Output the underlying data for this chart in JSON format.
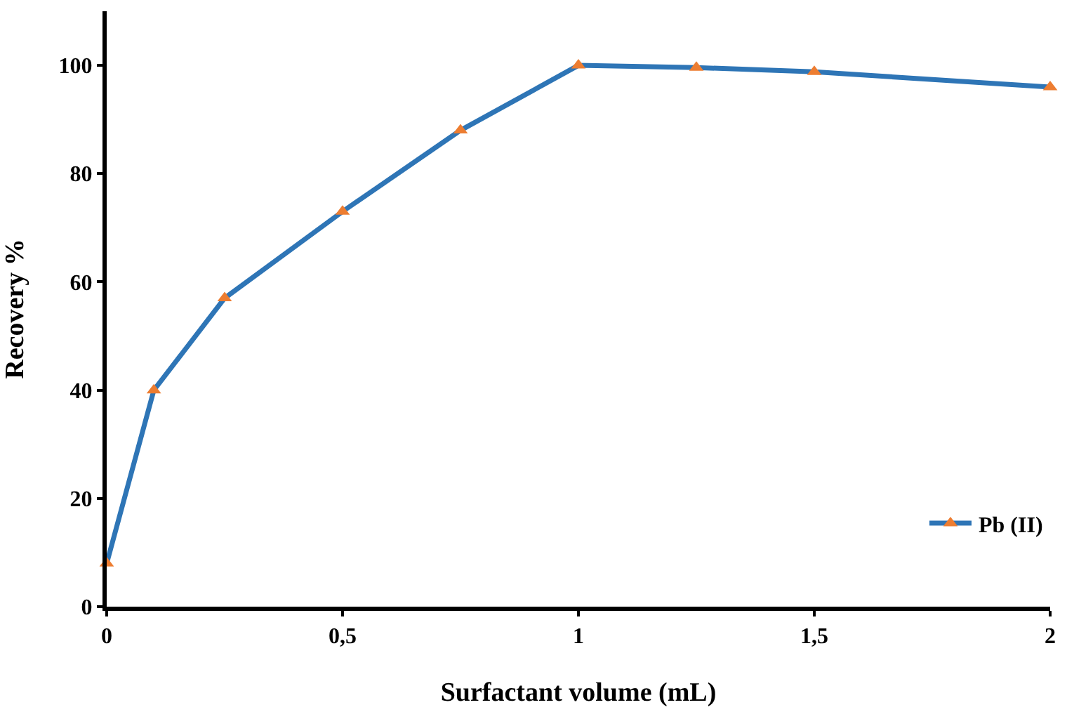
{
  "chart_data": {
    "type": "line",
    "xlabel": "Surfactant volume (mL)",
    "ylabel": "Recovery %",
    "x": [
      0,
      0.1,
      0.25,
      0.5,
      0.75,
      1,
      1.25,
      1.5,
      2
    ],
    "series": [
      {
        "name": "Pb (II)",
        "color": "#2e75b6",
        "colors": [
          "#ed7d31",
          "#ed7d31",
          "#ed7d31",
          "#ed7d31",
          "#ed7d31",
          "#ed7d31",
          "#ed7d31",
          "#ed7d31",
          "#ed7d31"
        ],
        "values": [
          8,
          40,
          57,
          73,
          88,
          100,
          99.6,
          98.8,
          96
        ]
      }
    ],
    "xlim": [
      0,
      2
    ],
    "xticks": [
      0,
      {
        "value": 0.5,
        "label": "0,5"
      },
      1,
      {
        "value": 1.5,
        "label": "1,5"
      },
      2
    ],
    "ylim": [
      0,
      110
    ],
    "yticks": [
      0,
      20,
      40,
      60,
      80,
      100
    ],
    "legend": "bottom right",
    "marker": "triangle",
    "line_style": "solid"
  }
}
